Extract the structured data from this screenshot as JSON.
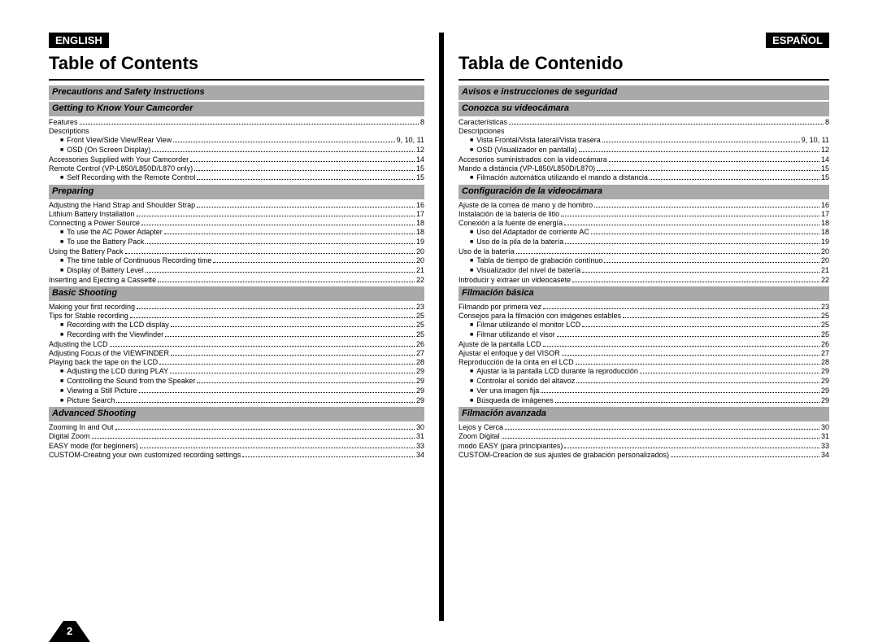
{
  "page_number": "2",
  "left": {
    "lang": "ENGLISH",
    "title": "Table of Contents",
    "sections": [
      {
        "header": "Precautions and Safety Instructions",
        "items": []
      },
      {
        "header": "Getting to Know Your Camcorder",
        "items": [
          {
            "label": "Features",
            "pg": "8",
            "ind": 1
          },
          {
            "label": "Descriptions",
            "pg": "",
            "ind": 1,
            "nopg": true
          },
          {
            "label": "Front View/Side View/Rear View",
            "pg": "9, 10, 11",
            "ind": 2
          },
          {
            "label": "OSD (On Screen Display)",
            "pg": "12",
            "ind": 2
          },
          {
            "label": "Accessories Supplied with Your Camcorder",
            "pg": "14",
            "ind": 1
          },
          {
            "label": "Remote Control (VP-L850/L850D/L870 only)",
            "pg": "15",
            "ind": 1
          },
          {
            "label": "Self Recording with the Remote Control",
            "pg": "15",
            "ind": 2
          }
        ]
      },
      {
        "header": "Preparing",
        "items": [
          {
            "label": "Adjusting the Hand Strap and Shoulder Strap",
            "pg": "16",
            "ind": 1
          },
          {
            "label": "Lithium Battery Installation",
            "pg": "17",
            "ind": 1
          },
          {
            "label": "Connecting a Power Source",
            "pg": "18",
            "ind": 1
          },
          {
            "label": "To use the AC Power Adapter",
            "pg": "18",
            "ind": 2
          },
          {
            "label": "To use the Battery Pack",
            "pg": "19",
            "ind": 2
          },
          {
            "label": "Using the Battery Pack",
            "pg": "20",
            "ind": 1
          },
          {
            "label": "The time table of Continuous Recording time",
            "pg": "20",
            "ind": 2
          },
          {
            "label": "Display of Battery Level",
            "pg": "21",
            "ind": 2
          },
          {
            "label": "Inserting and Ejecting a Cassette",
            "pg": "22",
            "ind": 1
          }
        ]
      },
      {
        "header": "Basic Shooting",
        "items": [
          {
            "label": "Making your first recording",
            "pg": "23",
            "ind": 1
          },
          {
            "label": "Tips for Stable recording",
            "pg": "25",
            "ind": 1
          },
          {
            "label": "Recording with the LCD display",
            "pg": "25",
            "ind": 2
          },
          {
            "label": "Recording with the Viewfinder",
            "pg": "25",
            "ind": 2
          },
          {
            "label": "Adjusting the LCD",
            "pg": "26",
            "ind": 1
          },
          {
            "label": "Adjusting Focus of the VIEWFINDER",
            "pg": "27",
            "ind": 1
          },
          {
            "label": "Playing back the tape on the LCD",
            "pg": "28",
            "ind": 1
          },
          {
            "label": "Adjusting the LCD during PLAY",
            "pg": "29",
            "ind": 2
          },
          {
            "label": "Controlling the Sound from the Speaker",
            "pg": "29",
            "ind": 2
          },
          {
            "label": "Viewing a Still Picture",
            "pg": "29",
            "ind": 2
          },
          {
            "label": "Picture Search",
            "pg": "29",
            "ind": 2
          }
        ]
      },
      {
        "header": "Advanced Shooting",
        "items": [
          {
            "label": "Zooming In and Out",
            "pg": "30",
            "ind": 1
          },
          {
            "label": "Digital Zoom",
            "pg": "31",
            "ind": 1
          },
          {
            "label": "EASY mode (for beginners)",
            "pg": "33",
            "ind": 1
          },
          {
            "label": "CUSTOM-Creating your own customized recording settings",
            "pg": "34",
            "ind": 1
          }
        ]
      }
    ]
  },
  "right": {
    "lang": "ESPAÑOL",
    "title": "Tabla de Contenido",
    "sections": [
      {
        "header": "Avisos e instrucciones de seguridad",
        "items": []
      },
      {
        "header": "Conozca su videocámara",
        "items": [
          {
            "label": "Características",
            "pg": "8",
            "ind": 1
          },
          {
            "label": "Descripciones",
            "pg": "",
            "ind": 1,
            "nopg": true
          },
          {
            "label": "Vista Frontal/Vista lateral/Vista trasera",
            "pg": "9, 10, 11",
            "ind": 2
          },
          {
            "label": "OSD (Visualizador en pantalla)",
            "pg": "12",
            "ind": 2
          },
          {
            "label": "Accesorios suministrados con la videocámara",
            "pg": "14",
            "ind": 1
          },
          {
            "label": "Mando a distáncia (VP-L850/L850D/L870)",
            "pg": "15",
            "ind": 1
          },
          {
            "label": "Filmación automática utilizando el mando a distancia",
            "pg": "15",
            "ind": 2
          }
        ]
      },
      {
        "header": "Configuración de la videocámara",
        "items": [
          {
            "label": "Ajuste de la correa de mano y de hombro",
            "pg": "16",
            "ind": 1
          },
          {
            "label": "Instalación de la batería de litio",
            "pg": "17",
            "ind": 1
          },
          {
            "label": "Conexión a la fuente de energía",
            "pg": "18",
            "ind": 1
          },
          {
            "label": "Uso del Adaptador de corriente AC",
            "pg": "18",
            "ind": 2
          },
          {
            "label": "Uso de la pila de la batería",
            "pg": "19",
            "ind": 2
          },
          {
            "label": "Uso de la batería",
            "pg": "20",
            "ind": 1
          },
          {
            "label": "Tabla de tiempo de grabación contínuo",
            "pg": "20",
            "ind": 2
          },
          {
            "label": "Visualizador del nível de batería",
            "pg": "21",
            "ind": 2
          },
          {
            "label": "Introducir y extraer un videocasete",
            "pg": "22",
            "ind": 1
          }
        ]
      },
      {
        "header": "Filmación básica",
        "items": [
          {
            "label": "Filmando por primera vez",
            "pg": "23",
            "ind": 1
          },
          {
            "label": "Consejos para la filmación con imágenes estables",
            "pg": "25",
            "ind": 1
          },
          {
            "label": "Filmar utilizando el monitor LCD",
            "pg": "25",
            "ind": 2
          },
          {
            "label": "Filmar utilizando el visor",
            "pg": "25",
            "ind": 2
          },
          {
            "label": "Ajuste de la pantalla LCD",
            "pg": "26",
            "ind": 1
          },
          {
            "label": "Ajustar el enfoque y del VISOR",
            "pg": "27",
            "ind": 1
          },
          {
            "label": "Reproducción de la cinta en el LCD",
            "pg": "28",
            "ind": 1
          },
          {
            "label": "Ajustar la la pantalla LCD durante la reproducción",
            "pg": "29",
            "ind": 2
          },
          {
            "label": "Controlar el sonido del altavoz",
            "pg": "29",
            "ind": 2
          },
          {
            "label": "Ver una imagen fija",
            "pg": "29",
            "ind": 2
          },
          {
            "label": "Búsqueda de imágenes",
            "pg": "29",
            "ind": 2
          }
        ]
      },
      {
        "header": "Filmación avanzada",
        "items": [
          {
            "label": "Lejos y Cerca",
            "pg": "30",
            "ind": 1
          },
          {
            "label": "Zoom Digital",
            "pg": "31",
            "ind": 1
          },
          {
            "label": "modo EASY (para principiantes)",
            "pg": "33",
            "ind": 1
          },
          {
            "label": "CUSTOM-Creacíon de sus ajustes de grabación personalizados)",
            "pg": "34",
            "ind": 1
          }
        ]
      }
    ]
  }
}
